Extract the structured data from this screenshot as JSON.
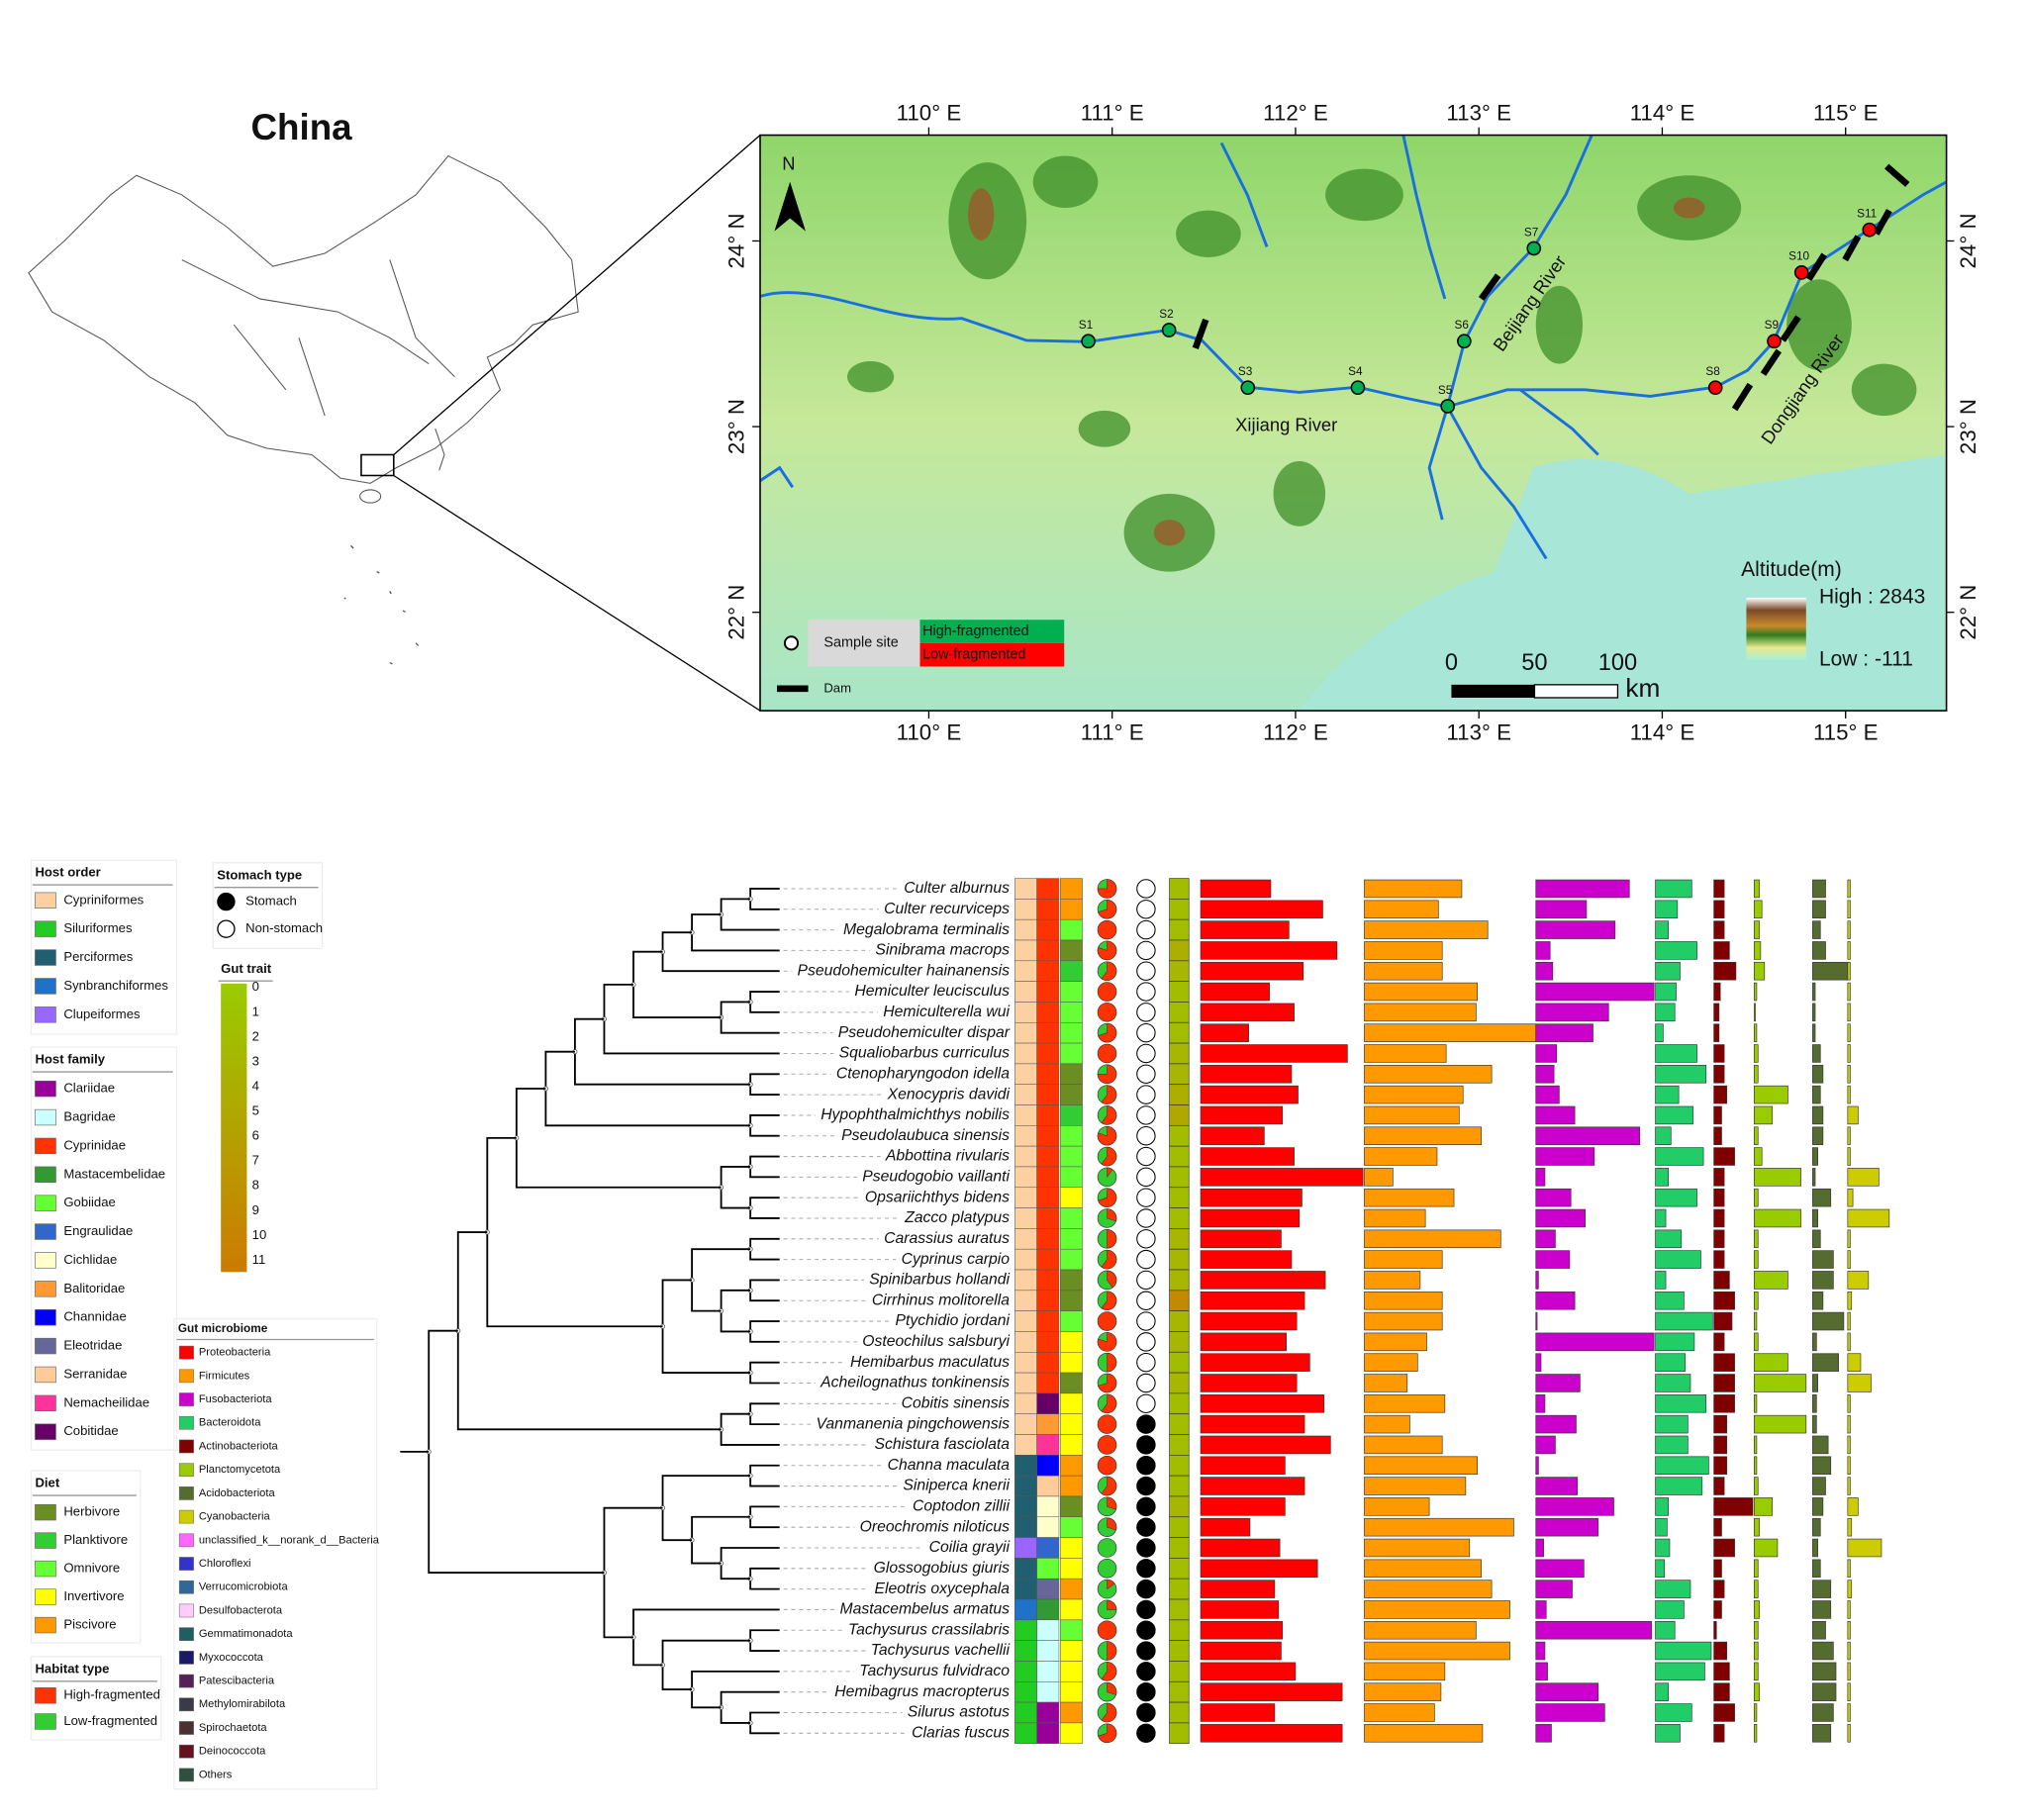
{
  "map": {
    "title": "China",
    "north": "N",
    "xlim": [
      109.08,
      115.55
    ],
    "ylim": [
      21.47,
      24.57
    ],
    "xticks": [
      {
        "value": 110,
        "label": "110° E"
      },
      {
        "value": 111,
        "label": "111° E"
      },
      {
        "value": 112,
        "label": "112° E"
      },
      {
        "value": 113,
        "label": "113° E"
      },
      {
        "value": 114,
        "label": "114° E"
      },
      {
        "value": 115,
        "label": "115° E"
      }
    ],
    "yticks": [
      {
        "value": 22,
        "label": "22° N"
      },
      {
        "value": 23,
        "label": "23° N"
      },
      {
        "value": 24,
        "label": "24° N"
      }
    ],
    "sites": [
      {
        "label": "S1",
        "lon": 110.87,
        "lat": 23.46,
        "group": 0
      },
      {
        "label": "S2",
        "lon": 111.31,
        "lat": 23.52,
        "group": 0
      },
      {
        "label": "S3",
        "lon": 111.74,
        "lat": 23.21,
        "group": 0
      },
      {
        "label": "S4",
        "lon": 112.34,
        "lat": 23.21,
        "group": 0
      },
      {
        "label": "S5",
        "lon": 112.83,
        "lat": 23.11,
        "group": 0
      },
      {
        "label": "S6",
        "lon": 112.92,
        "lat": 23.46,
        "group": 0
      },
      {
        "label": "S7",
        "lon": 113.3,
        "lat": 23.96,
        "group": 0
      },
      {
        "label": "S8",
        "lon": 114.29,
        "lat": 23.21,
        "group": 1
      },
      {
        "label": "S9",
        "lon": 114.61,
        "lat": 23.46,
        "group": 1
      },
      {
        "label": "S10",
        "lon": 114.76,
        "lat": 23.83,
        "group": 1
      },
      {
        "label": "S11",
        "lon": 115.13,
        "lat": 24.06,
        "group": 1
      }
    ],
    "rivers": [
      "Xijiang River",
      "Beijiang River",
      "Dongjiang River"
    ],
    "legend": {
      "site": "Sample site",
      "dam": "Dam",
      "groups": [
        {
          "name": "High-fragmented",
          "color": "#00b050"
        },
        {
          "name": "Low-fragmented",
          "color": "#ff0000"
        }
      ]
    },
    "scale": {
      "ticks": [
        0,
        50,
        100
      ],
      "unit": "km"
    },
    "altitude": {
      "title": "Altitude(m)",
      "high": "High : 2843",
      "low": "Low : -111"
    }
  },
  "legends": {
    "order": {
      "title": "Host order",
      "items": [
        {
          "name": "Cypriniformes",
          "color": "#fdd0a2"
        },
        {
          "name": "Siluriformes",
          "color": "#22cc22"
        },
        {
          "name": "Perciformes",
          "color": "#1f5f6f"
        },
        {
          "name": "Synbranchiformes",
          "color": "#1e73c8"
        },
        {
          "name": "Clupeiformes",
          "color": "#9966ff"
        }
      ]
    },
    "family": {
      "title": "Host family",
      "items": [
        {
          "name": "Clariidae",
          "color": "#990099"
        },
        {
          "name": "Bagridae",
          "color": "#ccffff"
        },
        {
          "name": "Cyprinidae",
          "color": "#ff3300"
        },
        {
          "name": "Mastacembelidae",
          "color": "#339933"
        },
        {
          "name": "Gobiidae",
          "color": "#66ff33"
        },
        {
          "name": "Engraulidae",
          "color": "#3366cc"
        },
        {
          "name": "Cichlidae",
          "color": "#ffffcc"
        },
        {
          "name": "Balitoridae",
          "color": "#ff9933"
        },
        {
          "name": "Channidae",
          "color": "#0000ff"
        },
        {
          "name": "Eleotridae",
          "color": "#666699"
        },
        {
          "name": "Serranidae",
          "color": "#ffcc99"
        },
        {
          "name": "Nemacheilidae",
          "color": "#ff3399"
        },
        {
          "name": "Cobitidae",
          "color": "#660066"
        }
      ]
    },
    "diet": {
      "title": "Diet",
      "items": [
        {
          "name": "Herbivore",
          "color": "#6b8e23"
        },
        {
          "name": "Planktivore",
          "color": "#32cd32"
        },
        {
          "name": "Omnivore",
          "color": "#66ff33"
        },
        {
          "name": "Invertivore",
          "color": "#ffff00"
        },
        {
          "name": "Piscivore",
          "color": "#ff9900"
        }
      ]
    },
    "habitat": {
      "title": "Habitat type",
      "items": [
        {
          "name": "High-fragmented",
          "color": "#ff3300"
        },
        {
          "name": "Low-fragmented",
          "color": "#33cc33"
        }
      ]
    },
    "stomach": {
      "title": "Stomach type",
      "items": [
        {
          "name": "Stomach",
          "color": "#000000"
        },
        {
          "name": "Non-stomach",
          "color": "#ffffff"
        }
      ]
    },
    "gut_trait": {
      "title": "Gut trait",
      "ticks": [
        0,
        1,
        2,
        3,
        4,
        5,
        6,
        7,
        8,
        9,
        10,
        11
      ],
      "colors": [
        "#99cc00",
        "#cc7a00"
      ]
    }
  },
  "species": [
    {
      "name": "Culter alburnus",
      "order": 0,
      "family": 2,
      "diet": 4,
      "habitat": 75,
      "stomach": 1,
      "gut_trait": 2
    },
    {
      "name": "Culter recurviceps",
      "order": 0,
      "family": 2,
      "diet": 4,
      "habitat": 70,
      "stomach": 1,
      "gut_trait": 2
    },
    {
      "name": "Megalobrama terminalis",
      "order": 0,
      "family": 2,
      "diet": 2,
      "habitat": 100,
      "stomach": 1,
      "gut_trait": 2
    },
    {
      "name": "Sinibrama macrops",
      "order": 0,
      "family": 2,
      "diet": 0,
      "habitat": 80,
      "stomach": 1,
      "gut_trait": 4
    },
    {
      "name": "Pseudohemiculter hainanensis",
      "order": 0,
      "family": 2,
      "diet": 1,
      "habitat": 60,
      "stomach": 1,
      "gut_trait": 3
    },
    {
      "name": "Hemiculter leucisculus",
      "order": 0,
      "family": 2,
      "diet": 2,
      "habitat": 100,
      "stomach": 1,
      "gut_trait": 2
    },
    {
      "name": "Hemiculterella wui",
      "order": 0,
      "family": 2,
      "diet": 2,
      "habitat": 100,
      "stomach": 1,
      "gut_trait": 2
    },
    {
      "name": "Pseudohemiculter dispar",
      "order": 0,
      "family": 2,
      "diet": 2,
      "habitat": 70,
      "stomach": 1,
      "gut_trait": 2
    },
    {
      "name": "Squaliobarbus curriculus",
      "order": 0,
      "family": 2,
      "diet": 2,
      "habitat": 100,
      "stomach": 1,
      "gut_trait": 3
    },
    {
      "name": "Ctenopharyngodon idella",
      "order": 0,
      "family": 2,
      "diet": 0,
      "habitat": 75,
      "stomach": 1,
      "gut_trait": 3
    },
    {
      "name": "Xenocypris davidi",
      "order": 0,
      "family": 2,
      "diet": 0,
      "habitat": 60,
      "stomach": 1,
      "gut_trait": 4
    },
    {
      "name": "Hypophthalmichthys nobilis",
      "order": 0,
      "family": 2,
      "diet": 1,
      "habitat": 60,
      "stomach": 1,
      "gut_trait": 5
    },
    {
      "name": "Pseudolaubuca sinensis",
      "order": 0,
      "family": 2,
      "diet": 2,
      "habitat": 80,
      "stomach": 1,
      "gut_trait": 2
    },
    {
      "name": "Abbottina rivularis",
      "order": 0,
      "family": 2,
      "diet": 2,
      "habitat": 60,
      "stomach": 1,
      "gut_trait": 2
    },
    {
      "name": "Pseudogobio vaillanti",
      "order": 0,
      "family": 2,
      "diet": 2,
      "habitat": 10,
      "stomach": 1,
      "gut_trait": 2
    },
    {
      "name": "Opsariichthys bidens",
      "order": 0,
      "family": 2,
      "diet": 3,
      "habitat": 70,
      "stomach": 1,
      "gut_trait": 2
    },
    {
      "name": "Zacco platypus",
      "order": 0,
      "family": 2,
      "diet": 2,
      "habitat": 30,
      "stomach": 1,
      "gut_trait": 2
    },
    {
      "name": "Carassius auratus",
      "order": 0,
      "family": 2,
      "diet": 2,
      "habitat": 50,
      "stomach": 1,
      "gut_trait": 3
    },
    {
      "name": "Cyprinus carpio",
      "order": 0,
      "family": 2,
      "diet": 2,
      "habitat": 60,
      "stomach": 1,
      "gut_trait": 3
    },
    {
      "name": "Spinibarbus hollandi",
      "order": 0,
      "family": 2,
      "diet": 0,
      "habitat": 40,
      "stomach": 1,
      "gut_trait": 3
    },
    {
      "name": "Cirrhinus molitorella",
      "order": 0,
      "family": 2,
      "diet": 0,
      "habitat": 60,
      "stomach": 1,
      "gut_trait": 9
    },
    {
      "name": "Ptychidio jordani",
      "order": 0,
      "family": 2,
      "diet": 2,
      "habitat": 100,
      "stomach": 1,
      "gut_trait": 3
    },
    {
      "name": "Osteochilus salsburyi",
      "order": 0,
      "family": 2,
      "diet": 3,
      "habitat": 80,
      "stomach": 1,
      "gut_trait": 3
    },
    {
      "name": "Hemibarbus maculatus",
      "order": 0,
      "family": 2,
      "diet": 3,
      "habitat": 50,
      "stomach": 1,
      "gut_trait": 2
    },
    {
      "name": "Acheilognathus tonkinensis",
      "order": 0,
      "family": 2,
      "diet": 0,
      "habitat": 70,
      "stomach": 1,
      "gut_trait": 3
    },
    {
      "name": "Cobitis sinensis",
      "order": 0,
      "family": 12,
      "diet": 3,
      "habitat": 60,
      "stomach": 1,
      "gut_trait": 2
    },
    {
      "name": "Vanmanenia pingchowensis",
      "order": 0,
      "family": 7,
      "diet": 3,
      "habitat": 100,
      "stomach": 0,
      "gut_trait": 2
    },
    {
      "name": "Schistura fasciolata",
      "order": 0,
      "family": 11,
      "diet": 3,
      "habitat": 100,
      "stomach": 0,
      "gut_trait": 2
    },
    {
      "name": "Channa maculata",
      "order": 2,
      "family": 8,
      "diet": 4,
      "habitat": 100,
      "stomach": 0,
      "gut_trait": 2
    },
    {
      "name": "Siniperca knerii",
      "order": 2,
      "family": 10,
      "diet": 4,
      "habitat": 60,
      "stomach": 0,
      "gut_trait": 2
    },
    {
      "name": "Coptodon zillii",
      "order": 2,
      "family": 6,
      "diet": 0,
      "habitat": 30,
      "stomach": 0,
      "gut_trait": 3
    },
    {
      "name": "Oreochromis niloticus",
      "order": 2,
      "family": 6,
      "diet": 2,
      "habitat": 30,
      "stomach": 0,
      "gut_trait": 2
    },
    {
      "name": "Coilia grayii",
      "order": 4,
      "family": 5,
      "diet": 3,
      "habitat": 0,
      "stomach": 0,
      "gut_trait": 2
    },
    {
      "name": "Glossogobius giuris",
      "order": 2,
      "family": 4,
      "diet": 3,
      "habitat": 0,
      "stomach": 0,
      "gut_trait": 2
    },
    {
      "name": "Eleotris oxycephala",
      "order": 2,
      "family": 9,
      "diet": 4,
      "habitat": 15,
      "stomach": 0,
      "gut_trait": 2
    },
    {
      "name": "Mastacembelus armatus",
      "order": 3,
      "family": 3,
      "diet": 3,
      "habitat": 25,
      "stomach": 0,
      "gut_trait": 2
    },
    {
      "name": "Tachysurus crassilabris",
      "order": 1,
      "family": 1,
      "diet": 2,
      "habitat": 100,
      "stomach": 0,
      "gut_trait": 2
    },
    {
      "name": "Tachysurus vachellii",
      "order": 1,
      "family": 1,
      "diet": 3,
      "habitat": 50,
      "stomach": 0,
      "gut_trait": 2
    },
    {
      "name": "Tachysurus fulvidraco",
      "order": 1,
      "family": 1,
      "diet": 3,
      "habitat": 60,
      "stomach": 0,
      "gut_trait": 2
    },
    {
      "name": "Hemibagrus macropterus",
      "order": 1,
      "family": 1,
      "diet": 3,
      "habitat": 30,
      "stomach": 0,
      "gut_trait": 2
    },
    {
      "name": "Silurus astotus",
      "order": 1,
      "family": 0,
      "diet": 4,
      "habitat": 60,
      "stomach": 0,
      "gut_trait": 2
    },
    {
      "name": "Clarias fuscus",
      "order": 1,
      "family": 0,
      "diet": 3,
      "habitat": 70,
      "stomach": 0,
      "gut_trait": 2
    }
  ],
  "microbiome": {
    "title": "Gut microbiome",
    "taxa": [
      {
        "name": "Proteobacteria",
        "color": "#ff0000",
        "values": [
          54,
          94,
          68,
          105,
          79,
          53,
          72,
          37,
          113,
          70,
          75,
          63,
          49,
          72,
          125,
          78,
          76,
          62,
          70,
          96,
          80,
          74,
          66,
          84,
          74,
          95,
          80,
          100,
          65,
          80,
          65,
          38,
          61,
          90,
          57,
          60,
          63,
          62,
          73,
          109,
          57,
          109
        ]
      },
      {
        "name": "Firmicutes",
        "color": "#ff9900",
        "values": [
          75,
          57,
          95,
          60,
          60,
          87,
          86,
          132,
          63,
          98,
          76,
          73,
          90,
          56,
          22,
          69,
          47,
          105,
          60,
          43,
          60,
          60,
          48,
          41,
          33,
          62,
          35,
          60,
          87,
          78,
          50,
          115,
          81,
          90,
          98,
          112,
          86,
          112,
          62,
          59,
          54,
          91
        ]
      },
      {
        "name": "Fusobacteriota",
        "color": "#cc00cc",
        "values": [
          72,
          39,
          61,
          11,
          13,
          91,
          56,
          44,
          16,
          14,
          18,
          30,
          80,
          45,
          7,
          27,
          38,
          15,
          26,
          2,
          30,
          1,
          91,
          4,
          34,
          7,
          31,
          15,
          2,
          32,
          60,
          48,
          6,
          37,
          28,
          8,
          89,
          7,
          9,
          48,
          53,
          12
        ]
      },
      {
        "name": "Bacteroidota",
        "color": "#22cc66",
        "values": [
          28,
          17,
          10,
          32,
          19,
          16,
          15,
          6,
          32,
          39,
          18,
          29,
          12,
          37,
          10,
          32,
          8,
          20,
          35,
          8,
          22,
          44,
          30,
          23,
          27,
          39,
          25,
          25,
          41,
          36,
          10,
          9,
          11,
          7,
          27,
          22,
          15,
          43,
          38,
          10,
          28,
          19
        ]
      },
      {
        "name": "Actinobacteriota",
        "color": "#800000",
        "values": [
          8,
          8,
          8,
          12,
          17,
          5,
          4,
          4,
          8,
          8,
          10,
          6,
          6,
          16,
          8,
          8,
          8,
          8,
          8,
          12,
          16,
          14,
          8,
          16,
          16,
          16,
          10,
          10,
          10,
          8,
          30,
          6,
          16,
          6,
          8,
          6,
          2,
          10,
          12,
          12,
          16,
          8
        ]
      },
      {
        "name": "Planctomycetota",
        "color": "#99cc00",
        "values": [
          4,
          6,
          4,
          5,
          8,
          2,
          1,
          2,
          3,
          3,
          26,
          14,
          3,
          6,
          36,
          3,
          36,
          3,
          3,
          26,
          3,
          2,
          3,
          26,
          40,
          2,
          40,
          2,
          2,
          3,
          14,
          4,
          18,
          3,
          3,
          4,
          3,
          3,
          3,
          4,
          2,
          2
        ]
      },
      {
        "name": "Acidobacteriota",
        "color": "#556b2f",
        "values": [
          10,
          10,
          6,
          10,
          28,
          2,
          2,
          2,
          6,
          8,
          6,
          8,
          8,
          4,
          2,
          14,
          4,
          6,
          16,
          16,
          8,
          24,
          3,
          20,
          4,
          3,
          3,
          12,
          14,
          10,
          8,
          6,
          4,
          6,
          14,
          14,
          10,
          16,
          18,
          18,
          16,
          14
        ]
      },
      {
        "name": "Cyanobacteria",
        "color": "#cccc00",
        "values": [
          2,
          2,
          2,
          2,
          2,
          2,
          2,
          2,
          2,
          2,
          2,
          8,
          2,
          2,
          24,
          4,
          32,
          2,
          2,
          16,
          3,
          2,
          2,
          10,
          18,
          2,
          2,
          2,
          2,
          2,
          8,
          3,
          26,
          2,
          3,
          2,
          2,
          2,
          2,
          2,
          2,
          2
        ]
      },
      {
        "name": "unclassified_k__norank_d__Bacteria",
        "color": "#ff66ff"
      },
      {
        "name": "Chloroflexi",
        "color": "#3333cc"
      },
      {
        "name": "Verrucomicrobiota",
        "color": "#336699"
      },
      {
        "name": "Desulfobacterota",
        "color": "#ffccff"
      },
      {
        "name": "Gemmatimonadota",
        "color": "#1f5f5f"
      },
      {
        "name": "Myxococcota",
        "color": "#1a1a66"
      },
      {
        "name": "Patescibacteria",
        "color": "#552255"
      },
      {
        "name": "Methylomirabilota",
        "color": "#3a3a4a"
      },
      {
        "name": "Spirochaetota",
        "color": "#4a3030"
      },
      {
        "name": "Deinococcota",
        "color": "#661122"
      },
      {
        "name": "Others",
        "color": "#2f4f3f"
      }
    ]
  }
}
